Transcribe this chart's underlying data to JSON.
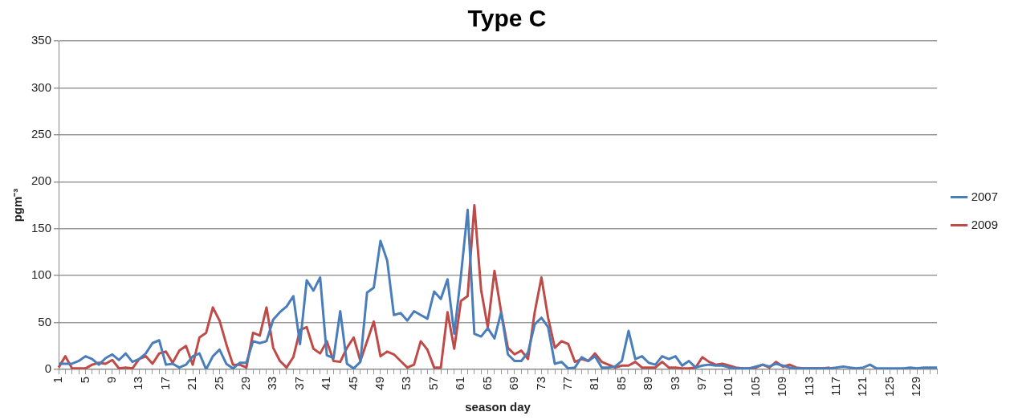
{
  "chart_data": {
    "type": "line",
    "title": "Type C",
    "xlabel": "season day",
    "ylabel": "pgm⁻³",
    "categories": [
      "1",
      null,
      null,
      null,
      "5",
      null,
      null,
      null,
      "9",
      null,
      null,
      null,
      "13",
      null,
      null,
      null,
      "17",
      null,
      null,
      null,
      "21",
      null,
      null,
      null,
      "25",
      null,
      null,
      null,
      "29",
      null,
      null,
      null,
      "33",
      null,
      null,
      null,
      "37",
      null,
      null,
      null,
      "41",
      null,
      null,
      null,
      "45",
      null,
      null,
      null,
      "49",
      null,
      null,
      null,
      "53",
      null,
      null,
      null,
      "57",
      null,
      null,
      null,
      "61",
      null,
      null,
      null,
      "65",
      null,
      null,
      null,
      "69",
      null,
      null,
      null,
      "73",
      null,
      null,
      null,
      "77",
      null,
      null,
      null,
      "81",
      null,
      null,
      null,
      "85",
      null,
      null,
      null,
      "89",
      null,
      null,
      null,
      "93",
      null,
      null,
      null,
      "97",
      null,
      null,
      null,
      "101",
      null,
      null,
      null,
      "105",
      null,
      null,
      null,
      "109",
      null,
      null,
      null,
      "113",
      null,
      null,
      null,
      "117",
      null,
      null,
      null,
      "121",
      null,
      null,
      null,
      "125",
      null,
      null,
      null,
      "129",
      null,
      null,
      null
    ],
    "series": [
      {
        "name": "2007",
        "color": "#4a7ebb",
        "values": [
          6,
          6,
          6,
          9,
          14,
          11,
          5,
          12,
          16,
          10,
          17,
          8,
          11,
          17,
          28,
          31,
          5,
          6,
          2,
          5,
          14,
          17,
          0,
          14,
          21,
          6,
          1,
          7,
          7,
          30,
          28,
          30,
          53,
          61,
          67,
          78,
          27,
          95,
          84,
          98,
          15,
          12,
          62,
          6,
          1,
          8,
          82,
          87,
          137,
          116,
          58,
          60,
          52,
          62,
          58,
          54,
          83,
          75,
          96,
          38,
          100,
          170,
          38,
          35,
          44,
          33,
          61,
          16,
          9,
          9,
          18,
          48,
          55,
          45,
          6,
          8,
          1,
          2,
          13,
          9,
          14,
          2,
          2,
          3,
          9,
          41,
          11,
          14,
          7,
          5,
          14,
          11,
          14,
          4,
          9,
          2,
          4,
          5,
          4,
          4,
          2,
          1,
          1,
          1,
          3,
          5,
          3,
          6,
          4,
          2,
          1,
          1,
          1,
          1,
          1,
          1,
          2,
          3,
          2,
          1,
          2,
          5,
          1,
          1,
          1,
          1,
          1,
          2,
          1,
          2,
          2,
          2
        ]
      },
      {
        "name": "2009",
        "color": "#be4b48",
        "values": [
          2,
          14,
          1,
          1,
          1,
          5,
          7,
          6,
          10,
          1,
          2,
          1,
          11,
          14,
          6,
          17,
          19,
          7,
          20,
          25,
          5,
          34,
          39,
          66,
          52,
          27,
          5,
          5,
          2,
          39,
          36,
          66,
          23,
          9,
          2,
          13,
          42,
          45,
          22,
          17,
          30,
          9,
          8,
          23,
          34,
          9,
          30,
          51,
          14,
          19,
          16,
          9,
          2,
          5,
          30,
          21,
          2,
          2,
          61,
          22,
          73,
          78,
          175,
          85,
          45,
          105,
          61,
          23,
          16,
          20,
          11,
          61,
          98,
          55,
          23,
          30,
          27,
          8,
          11,
          9,
          17,
          8,
          5,
          2,
          4,
          4,
          8,
          2,
          2,
          2,
          8,
          2,
          2,
          1,
          1,
          2,
          13,
          8,
          5,
          6,
          4,
          2,
          1,
          1,
          2,
          5,
          2,
          8,
          3,
          5,
          2,
          1,
          1,
          1,
          1,
          2,
          null,
          null,
          null,
          null,
          null,
          null,
          null,
          null,
          null,
          null,
          null,
          null,
          null,
          null,
          null,
          null
        ]
      }
    ],
    "ylim": [
      0,
      350
    ],
    "yticks": [
      0,
      50,
      100,
      150,
      200,
      250,
      300,
      350
    ],
    "grid": "y",
    "legend": "right",
    "marker": "none",
    "line_style": "solid"
  }
}
